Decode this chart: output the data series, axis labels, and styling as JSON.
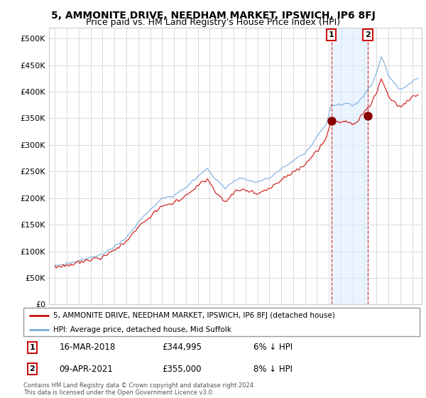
{
  "title": "5, AMMONITE DRIVE, NEEDHAM MARKET, IPSWICH, IP6 8FJ",
  "subtitle": "Price paid vs. HM Land Registry's House Price Index (HPI)",
  "legend_line1": "5, AMMONITE DRIVE, NEEDHAM MARKET, IPSWICH, IP6 8FJ (detached house)",
  "legend_line2": "HPI: Average price, detached house, Mid Suffolk",
  "annotation1_date": "16-MAR-2018",
  "annotation1_price": "£344,995",
  "annotation1_pct": "6% ↓ HPI",
  "annotation2_date": "09-APR-2021",
  "annotation2_price": "£355,000",
  "annotation2_pct": "8% ↓ HPI",
  "footnote": "Contains HM Land Registry data © Crown copyright and database right 2024.\nThis data is licensed under the Open Government Licence v3.0.",
  "sale1_x": 2018.21,
  "sale1_y": 344995,
  "sale2_x": 2021.27,
  "sale2_y": 355000,
  "hpi_color": "#7aade0",
  "price_color": "#cc1111",
  "shade_color": "#ddeeff",
  "background_color": "#ffffff",
  "grid_color": "#cccccc",
  "title_fontsize": 10,
  "subtitle_fontsize": 9,
  "ylim": [
    0,
    520000
  ],
  "xlim": [
    1994.5,
    2025.8
  ]
}
